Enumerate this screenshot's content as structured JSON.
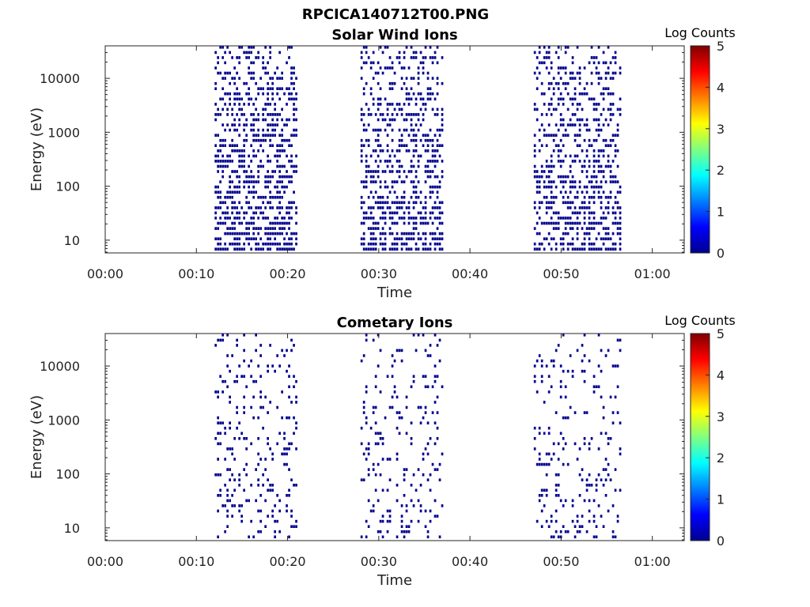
{
  "figure": {
    "title": "RPCICA140712T00.PNG"
  },
  "colormap": [
    "#00008f",
    "#0000ff",
    "#0080ff",
    "#00ffff",
    "#80ff80",
    "#ffff00",
    "#ff8000",
    "#ff0000",
    "#800000"
  ],
  "chart_data": [
    {
      "type": "heatmap",
      "title": "Solar Wind Ions",
      "xlabel": "Time",
      "ylabel": "Energy (eV)",
      "x_unit": "minutes since 00:00",
      "xlim": [
        0,
        63.5
      ],
      "ylim": [
        5.8,
        40000
      ],
      "y_scale": "log",
      "x_ticks": [
        0,
        10,
        20,
        30,
        40,
        50,
        60
      ],
      "x_tick_labels": [
        "00:00",
        "00:10",
        "00:20",
        "00:30",
        "00:40",
        "00:50",
        "01:00"
      ],
      "y_ticks": [
        10,
        100,
        1000,
        10000
      ],
      "y_tick_labels": [
        "10",
        "100",
        "1000",
        "10000"
      ],
      "colorbar": {
        "label": "Log Counts",
        "range": [
          0,
          5
        ],
        "ticks": [
          0,
          1,
          2,
          3,
          4,
          5
        ],
        "tick_labels": [
          "0",
          "1",
          "2",
          "3",
          "4",
          "5"
        ]
      },
      "data_bursts": [
        {
          "start": 12.0,
          "end": 21.0,
          "value_log_counts": 0,
          "density": 0.55
        },
        {
          "start": 28.0,
          "end": 37.0,
          "value_log_counts": 0,
          "density": 0.5
        },
        {
          "start": 47.0,
          "end": 56.5,
          "value_log_counts": 0,
          "density": 0.52
        }
      ],
      "seed": 7
    },
    {
      "type": "heatmap",
      "title": "Cometary Ions",
      "xlabel": "Time",
      "ylabel": "Energy (eV)",
      "x_unit": "minutes since 00:00",
      "xlim": [
        0,
        63.5
      ],
      "ylim": [
        5.8,
        40000
      ],
      "y_scale": "log",
      "x_ticks": [
        0,
        10,
        20,
        30,
        40,
        50,
        60
      ],
      "x_tick_labels": [
        "00:00",
        "00:10",
        "00:20",
        "00:30",
        "00:40",
        "00:50",
        "01:00"
      ],
      "y_ticks": [
        10,
        100,
        1000,
        10000
      ],
      "y_tick_labels": [
        "10",
        "100",
        "1000",
        "10000"
      ],
      "colorbar": {
        "label": "Log Counts",
        "range": [
          0,
          5
        ],
        "ticks": [
          0,
          1,
          2,
          3,
          4,
          5
        ],
        "tick_labels": [
          "0",
          "1",
          "2",
          "3",
          "4",
          "5"
        ]
      },
      "data_bursts": [
        {
          "start": 12.0,
          "end": 21.0,
          "value_log_counts": 0,
          "density": 0.18
        },
        {
          "start": 28.0,
          "end": 37.0,
          "value_log_counts": 0,
          "density": 0.16
        },
        {
          "start": 47.0,
          "end": 56.5,
          "value_log_counts": 0,
          "density": 0.17
        }
      ],
      "seed": 23
    }
  ]
}
